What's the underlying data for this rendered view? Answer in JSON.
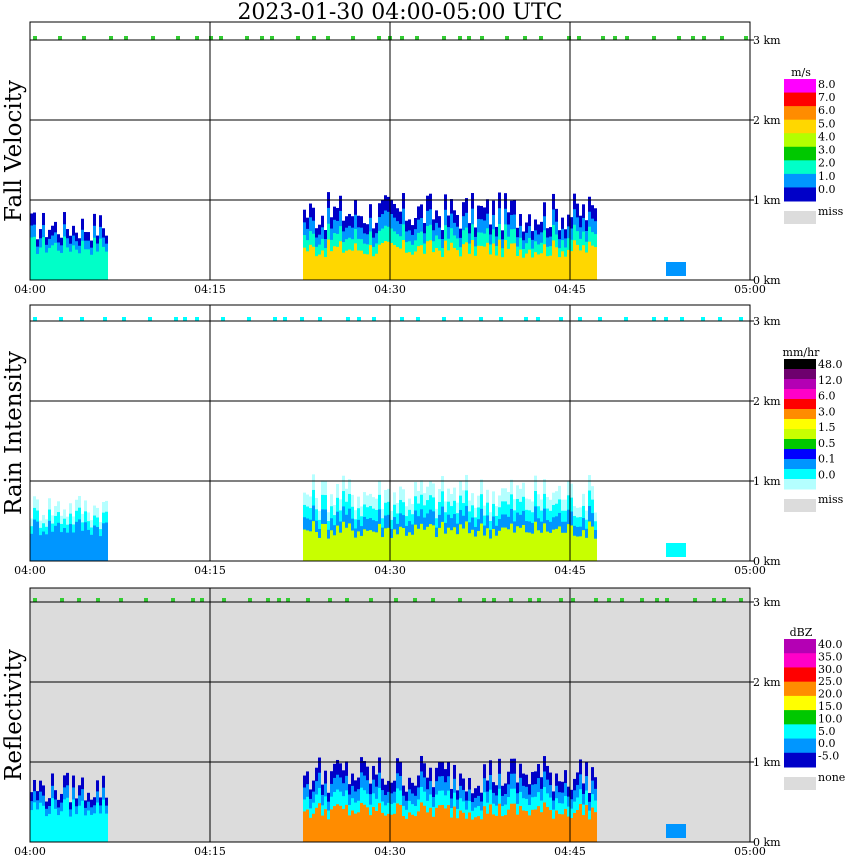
{
  "title": "2023-01-30   04:00-05:00 UTC",
  "colors": {
    "grid": "#000000",
    "missing_gray": "#dcdcdc"
  },
  "chart_data": [
    {
      "type": "heatmap",
      "ylabel": "Fall Velocity",
      "xticks": [
        "04:00",
        "04:15",
        "04:30",
        "04:45",
        "05:00"
      ],
      "yticks": [
        "0 km",
        "1 km",
        "2 km",
        "3 km"
      ],
      "ylim": [
        0,
        3.2
      ],
      "background": "white",
      "legend": {
        "unit": "m/s",
        "labels": [
          "8.0",
          "7.0",
          "6.0",
          "5.0",
          "4.0",
          "3.0",
          "2.0",
          "1.0",
          "0.0"
        ],
        "colors": [
          "#ff00ff",
          "#ff0000",
          "#ff8c00",
          "#ffd700",
          "#b4ff00",
          "#00c800",
          "#00ffc8",
          "#0096ff",
          "#0000c8"
        ],
        "extra_label": "miss"
      }
    },
    {
      "type": "heatmap",
      "ylabel": "Rain Intensity",
      "xticks": [
        "04:00",
        "04:15",
        "04:30",
        "04:45",
        "05:00"
      ],
      "yticks": [
        "0 km",
        "1 km",
        "2 km",
        "3 km"
      ],
      "ylim": [
        0,
        3.2
      ],
      "background": "white",
      "legend": {
        "unit": "mm/hr",
        "labels": [
          "48.0",
          "12.0",
          "6.0",
          "3.0",
          "1.5",
          "0.5",
          "0.1",
          "0.0"
        ],
        "colors": [
          "#000000",
          "#6e006e",
          "#b400b4",
          "#ff00c8",
          "#ff0000",
          "#ff8c00",
          "#ffff00",
          "#c8ff00",
          "#00c800",
          "#0000ff",
          "#0096ff",
          "#00ffff",
          "#b4ffff"
        ],
        "extra_label": "miss"
      }
    },
    {
      "type": "heatmap",
      "ylabel": "Reflectivity",
      "xticks": [
        "04:00",
        "04:15",
        "04:30",
        "04:45",
        "05:00"
      ],
      "yticks": [
        "0 km",
        "1 km",
        "2 km",
        "3 km"
      ],
      "ylim": [
        0,
        3.2
      ],
      "background": "gray",
      "legend": {
        "unit": "dBZ",
        "labels": [
          "40.0",
          "35.0",
          "30.0",
          "25.0",
          "20.0",
          "15.0",
          "10.0",
          "5.0",
          "0.0",
          "-5.0"
        ],
        "colors": [
          "#b400b4",
          "#ff00c8",
          "#ff0000",
          "#ff8c00",
          "#ffff00",
          "#00c800",
          "#00ffff",
          "#0096ff",
          "#0000c8"
        ],
        "extra_label": "none"
      }
    }
  ]
}
